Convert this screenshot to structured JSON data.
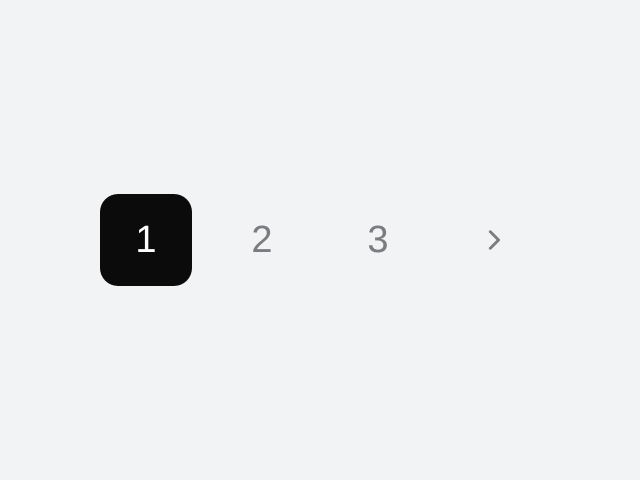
{
  "pagination": {
    "pages": [
      {
        "label": "1",
        "active": true
      },
      {
        "label": "2",
        "active": false
      },
      {
        "label": "3",
        "active": false
      }
    ],
    "next_icon": "chevron-right-icon",
    "colors": {
      "background": "#f2f3f5",
      "active_bg": "#0b0b0b",
      "active_text": "#ffffff",
      "inactive_text": "#7a7c80"
    }
  }
}
